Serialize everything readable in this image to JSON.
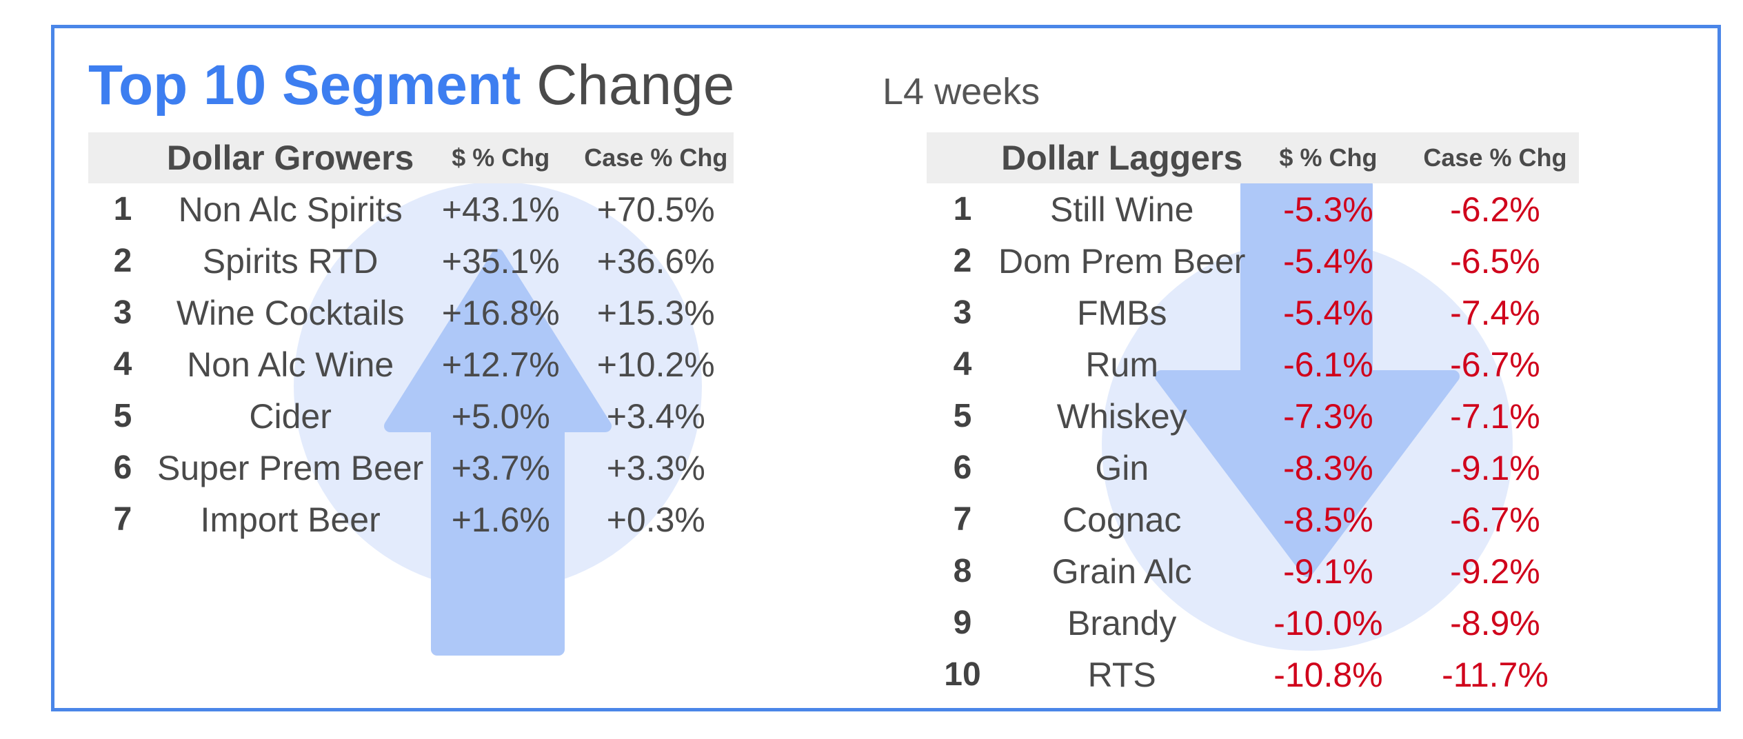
{
  "title": {
    "highlight": "Top 10 Segment",
    "rest": "Change"
  },
  "period": "L4 weeks",
  "colors": {
    "title_accent": "#3d7ef0",
    "frame": "#4a86e8",
    "negative": "#d0021b",
    "header_bg": "#eeeeee",
    "arrow_up": "#aec8f8",
    "arrow_down": "#aec8f8",
    "circle": "#e3ebfc"
  },
  "icons": {
    "growers": "arrow-up-icon",
    "laggers": "arrow-down-icon"
  },
  "growers": {
    "headers": [
      "",
      "Dollar Growers",
      "$ % Chg",
      "Case % Chg"
    ],
    "rows": [
      {
        "rank": "1",
        "segment": "Non Alc Spirits",
        "dollar_chg": "+43.1%",
        "case_chg": "+70.5%"
      },
      {
        "rank": "2",
        "segment": "Spirits RTD",
        "dollar_chg": "+35.1%",
        "case_chg": "+36.6%"
      },
      {
        "rank": "3",
        "segment": "Wine Cocktails",
        "dollar_chg": "+16.8%",
        "case_chg": "+15.3%"
      },
      {
        "rank": "4",
        "segment": "Non Alc Wine",
        "dollar_chg": "+12.7%",
        "case_chg": "+10.2%"
      },
      {
        "rank": "5",
        "segment": "Cider",
        "dollar_chg": "+5.0%",
        "case_chg": "+3.4%"
      },
      {
        "rank": "6",
        "segment": "Super Prem Beer",
        "dollar_chg": "+3.7%",
        "case_chg": "+3.3%"
      },
      {
        "rank": "7",
        "segment": "Import Beer",
        "dollar_chg": "+1.6%",
        "case_chg": "+0.3%"
      }
    ]
  },
  "laggers": {
    "headers": [
      "",
      "Dollar Laggers",
      "$ % Chg",
      "Case % Chg"
    ],
    "rows": [
      {
        "rank": "1",
        "segment": "Still Wine",
        "dollar_chg": "-5.3%",
        "case_chg": "-6.2%"
      },
      {
        "rank": "2",
        "segment": "Dom Prem Beer",
        "dollar_chg": "-5.4%",
        "case_chg": "-6.5%"
      },
      {
        "rank": "3",
        "segment": "FMBs",
        "dollar_chg": "-5.4%",
        "case_chg": "-7.4%"
      },
      {
        "rank": "4",
        "segment": "Rum",
        "dollar_chg": "-6.1%",
        "case_chg": "-6.7%"
      },
      {
        "rank": "5",
        "segment": "Whiskey",
        "dollar_chg": "-7.3%",
        "case_chg": "-7.1%"
      },
      {
        "rank": "6",
        "segment": "Gin",
        "dollar_chg": "-8.3%",
        "case_chg": "-9.1%"
      },
      {
        "rank": "7",
        "segment": "Cognac",
        "dollar_chg": "-8.5%",
        "case_chg": "-6.7%"
      },
      {
        "rank": "8",
        "segment": "Grain Alc",
        "dollar_chg": "-9.1%",
        "case_chg": "-9.2%"
      },
      {
        "rank": "9",
        "segment": "Brandy",
        "dollar_chg": "-10.0%",
        "case_chg": "-8.9%"
      },
      {
        "rank": "10",
        "segment": "RTS",
        "dollar_chg": "-10.8%",
        "case_chg": "-11.7%"
      }
    ]
  }
}
